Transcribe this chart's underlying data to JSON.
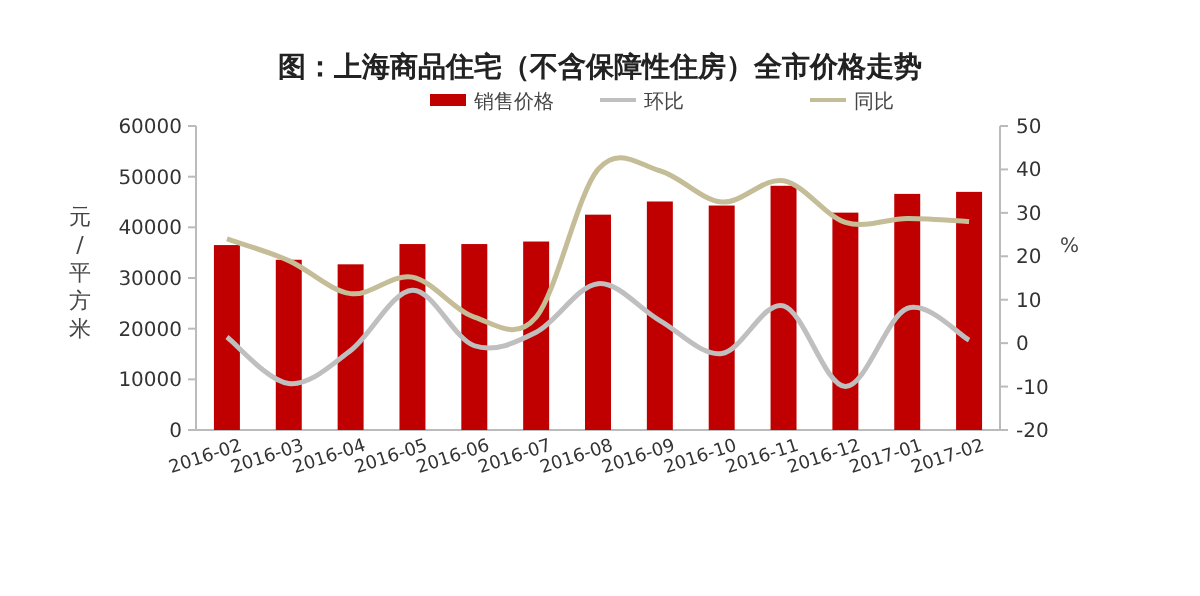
{
  "chart_data": {
    "type": "bar",
    "title": "图：上海商品住宅（不含保障性住房）全市价格走势",
    "categories": [
      "2016-02",
      "2016-03",
      "2016-04",
      "2016-05",
      "2016-06",
      "2016-07",
      "2016-08",
      "2016-09",
      "2016-10",
      "2016-11",
      "2016-12",
      "2017-01",
      "2017-02"
    ],
    "series": [
      {
        "name": "销售价格",
        "color": "#c00000",
        "values": [
          36500,
          33600,
          32700,
          36700,
          36700,
          37200,
          42500,
          45100,
          44300,
          48200,
          42900,
          46600,
          47000
        ]
      },
      {
        "name": "环比",
        "type": "line",
        "axis": "y2",
        "color": "#bfbfbf",
        "values": [
          1.4,
          -9.3,
          -1.7,
          12.2,
          -0.6,
          2.5,
          13.7,
          5.2,
          -2.4,
          8.6,
          -10,
          8,
          0.7
        ]
      },
      {
        "name": "同比",
        "type": "line",
        "axis": "y2",
        "color": "#c4bd97",
        "values": [
          24,
          19,
          11.4,
          15.2,
          6,
          6,
          40,
          39.7,
          32.5,
          37.4,
          27.8,
          28.7,
          28
        ]
      }
    ],
    "ylabel": "元/平方米",
    "y2label": "%",
    "ylim": [
      0,
      60000
    ],
    "yticks": [
      0,
      10000,
      20000,
      30000,
      40000,
      50000,
      60000
    ],
    "y2lim": [
      -20,
      50
    ],
    "y2ticks": [
      -20,
      -10,
      0,
      10,
      20,
      30,
      40,
      50
    ],
    "legend": "top",
    "grid": false
  }
}
